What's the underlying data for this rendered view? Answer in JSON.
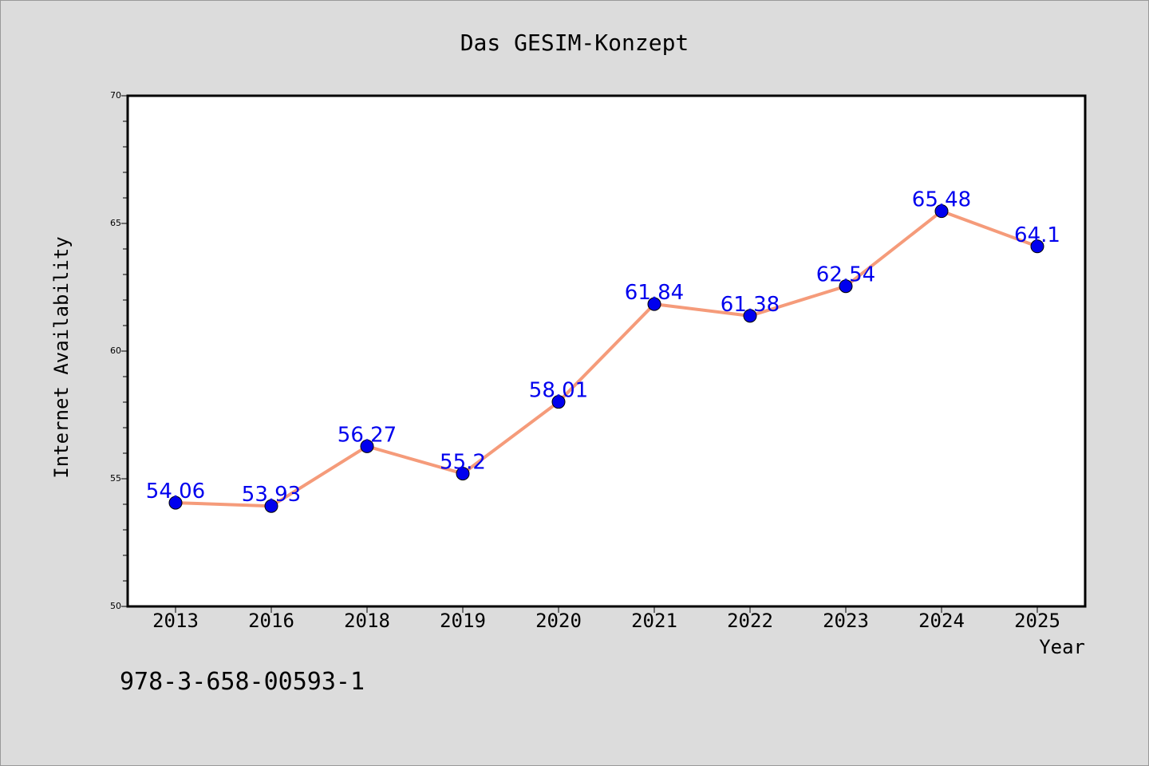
{
  "chart_data": {
    "type": "line",
    "title": "Das GESIM-Konzept",
    "xlabel": "Year",
    "ylabel": "Internet Availability",
    "categories": [
      "2013",
      "2016",
      "2018",
      "2019",
      "2020",
      "2021",
      "2022",
      "2023",
      "2024",
      "2025"
    ],
    "series": [
      {
        "values": [
          54.06,
          53.93,
          56.27,
          55.2,
          58.01,
          61.84,
          61.38,
          62.54,
          65.48,
          64.1
        ],
        "data_labels": [
          "54.06",
          "53.93",
          "56.27",
          "55.2",
          "58.01",
          "61.84",
          "61.38",
          "62.54",
          "65.48",
          "64.1"
        ],
        "line_color": "#f59b7a",
        "marker_color": "#0000ee",
        "label_color": "#0000ee"
      }
    ],
    "ylim": [
      50,
      70
    ],
    "yticks": [
      "50",
      "55",
      "60",
      "65",
      "70"
    ],
    "grid": false,
    "legend": "none"
  },
  "annotation": "978-3-658-00593-1",
  "colors": {
    "background": "#dcdcdc",
    "plot_area": "#ffffff",
    "axis": "#000000",
    "text": "#000000"
  }
}
